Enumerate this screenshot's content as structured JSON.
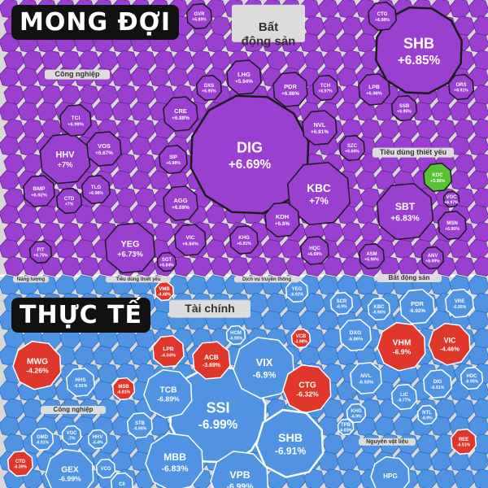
{
  "panels": {
    "top_label": "MONG ĐỢI",
    "bottom_label": "THỰC TẾ"
  },
  "colors": {
    "purple": "#9b3fd1",
    "green": "#58c232",
    "blue": "#4f93e2",
    "red": "#e0372c",
    "gray_bg": "#d8d8d8"
  },
  "sectors": {
    "bat_dong_san_top": [
      "Bất",
      "động sản"
    ],
    "cong_nghiep_top": "Công nghiệp",
    "tieu_dung_thiet_yeu_top": "Tiêu dùng thiết yếu",
    "nang_luong": "Năng lượng",
    "tieu_dung_thiet_yeu_bottom": "Tiêu dùng thiết yếu",
    "dich_vu_truyen_thong": "Dịch vụ truyền thông",
    "bat_dong_san_bottom": "Bất động sản",
    "tai_chinh": "Tài chính",
    "cong_nghiep_bottom": "Công nghiệp",
    "nguyen_vat_lieu": "Nguyên vật liệu"
  },
  "top_cells": [
    {
      "ticker": "SHB",
      "pct": "+6.85%",
      "color": "purple"
    },
    {
      "ticker": "DIG",
      "pct": "+6.69%",
      "color": "purple"
    },
    {
      "ticker": "KBC",
      "pct": "+7%",
      "color": "purple"
    },
    {
      "ticker": "SBT",
      "pct": "+6.83%",
      "color": "purple"
    },
    {
      "ticker": "HHV",
      "pct": "+7%",
      "color": "purple"
    },
    {
      "ticker": "YEG",
      "pct": "+6.73%",
      "color": "purple"
    },
    {
      "ticker": "LHG",
      "pct": "+5.94%",
      "color": "purple"
    },
    {
      "ticker": "PDR",
      "pct": "+6.98%",
      "color": "purple"
    },
    {
      "ticker": "NVL",
      "pct": "+6.91%",
      "color": "purple"
    },
    {
      "ticker": "CRE",
      "pct": "+6.88%",
      "color": "purple"
    },
    {
      "ticker": "AGG",
      "pct": "+6.69%",
      "color": "purple"
    },
    {
      "ticker": "VIC",
      "pct": "+6.84%",
      "color": "purple"
    },
    {
      "ticker": "KHG",
      "pct": "+6.91%",
      "color": "purple"
    },
    {
      "ticker": "KDH",
      "pct": "+6.8%",
      "color": "purple"
    },
    {
      "ticker": "HQC",
      "pct": "+6.69%",
      "color": "purple"
    },
    {
      "ticker": "SIP",
      "pct": "+6.98%",
      "color": "purple"
    },
    {
      "ticker": "DXS",
      "pct": "+6.95%",
      "color": "purple"
    },
    {
      "ticker": "TCH",
      "pct": "+6.97%",
      "color": "purple"
    },
    {
      "ticker": "SZC",
      "pct": "+6.66%",
      "color": "purple"
    },
    {
      "ticker": "TCI",
      "pct": "+6.99%",
      "color": "purple"
    },
    {
      "ticker": "VOS",
      "pct": "+6.67%",
      "color": "purple"
    },
    {
      "ticker": "BMP",
      "pct": "+6.92%",
      "color": "purple"
    },
    {
      "ticker": "TLG",
      "pct": "+6.98%",
      "color": "purple"
    },
    {
      "ticker": "CTD",
      "pct": "+7%",
      "color": "purple"
    },
    {
      "ticker": "LPB",
      "pct": "+6.98%",
      "color": "purple"
    },
    {
      "ticker": "SSB",
      "pct": "+6.95%",
      "color": "purple"
    },
    {
      "ticker": "CTG",
      "pct": "+6.98%",
      "color": "purple"
    },
    {
      "ticker": "ORS",
      "pct": "+6.91%",
      "color": "purple"
    },
    {
      "ticker": "MSN",
      "pct": "+6.95%",
      "color": "purple"
    },
    {
      "ticker": "ASM",
      "pct": "+6.96%",
      "color": "purple"
    },
    {
      "ticker": "ANV",
      "pct": "+6.99%",
      "color": "purple"
    },
    {
      "ticker": "KDC",
      "pct": "+3.35%",
      "color": "green"
    },
    {
      "ticker": "GVR",
      "pct": "+6.89%",
      "color": "purple"
    },
    {
      "ticker": "VGC",
      "pct": "+6.97%",
      "color": "purple"
    },
    {
      "ticker": "FIT",
      "pct": "+6.75%",
      "color": "purple"
    },
    {
      "ticker": "SGT",
      "pct": "+6.84%",
      "color": "purple"
    }
  ],
  "bottom_cells": [
    {
      "ticker": "SSI",
      "pct": "-6.99%",
      "color": "blue"
    },
    {
      "ticker": "VIX",
      "pct": "-6.9%",
      "color": "blue"
    },
    {
      "ticker": "CTG",
      "pct": "-6.32%",
      "color": "red"
    },
    {
      "ticker": "SHB",
      "pct": "-6.91%",
      "color": "blue"
    },
    {
      "ticker": "MBB",
      "pct": "-6.83%",
      "color": "blue"
    },
    {
      "ticker": "TCB",
      "pct": "-6.89%",
      "color": "blue"
    },
    {
      "ticker": "ACB",
      "pct": "-3.69%",
      "color": "red"
    },
    {
      "ticker": "LPB",
      "pct": "-4.04%",
      "color": "red"
    },
    {
      "ticker": "VPB",
      "pct": "-6.99%",
      "color": "blue"
    },
    {
      "ticker": "MWG",
      "pct": "-4.26%",
      "color": "red"
    },
    {
      "ticker": "HHS",
      "pct": "-6.91%",
      "color": "blue"
    },
    {
      "ticker": "GEX",
      "pct": "-6.99%",
      "color": "blue"
    },
    {
      "ticker": "VHM",
      "pct": "-6.9%",
      "color": "red"
    },
    {
      "ticker": "VIC",
      "pct": "-4.46%",
      "color": "red"
    },
    {
      "ticker": "PDR",
      "pct": "-6.92%",
      "color": "blue"
    },
    {
      "ticker": "VRE",
      "pct": "-6.95%",
      "color": "blue"
    },
    {
      "ticker": "DXG",
      "pct": "-6.86%",
      "color": "blue"
    },
    {
      "ticker": "NVL",
      "pct": "-6.93%",
      "color": "blue"
    },
    {
      "ticker": "DIG",
      "pct": "-6.91%",
      "color": "blue"
    },
    {
      "ticker": "KBC",
      "pct": "-6.94%",
      "color": "blue"
    },
    {
      "ticker": "SCR",
      "pct": "-6.9%",
      "color": "blue"
    },
    {
      "ticker": "HDC",
      "pct": "-6.95%",
      "color": "blue"
    },
    {
      "ticker": "LIC",
      "pct": "-6.77%",
      "color": "blue"
    },
    {
      "ticker": "HPG",
      "pct": "",
      "color": "blue"
    },
    {
      "ticker": "YEG",
      "pct": "-6.92%",
      "color": "blue"
    },
    {
      "ticker": "VCB",
      "pct": "-4.98%",
      "color": "red"
    },
    {
      "ticker": "HCM",
      "pct": "-6.95%",
      "color": "blue"
    },
    {
      "ticker": "STB",
      "pct": "-6.95%",
      "color": "blue"
    },
    {
      "ticker": "MSB",
      "pct": "-6.81%",
      "color": "red"
    },
    {
      "ticker": "GMD",
      "pct": "-6.91%",
      "color": "blue"
    },
    {
      "ticker": "VGC",
      "pct": "-7%",
      "color": "blue"
    },
    {
      "ticker": "HHV",
      "pct": "-6.4%",
      "color": "blue"
    },
    {
      "ticker": "CTD",
      "pct": "-6.39%",
      "color": "red"
    },
    {
      "ticker": "VCG",
      "pct": "",
      "color": "blue"
    },
    {
      "ticker": "REE",
      "pct": "-6.51%",
      "color": "red"
    },
    {
      "ticker": "NTL",
      "pct": "-6.9%",
      "color": "blue"
    },
    {
      "ticker": "KHG",
      "pct": "-6.9%",
      "color": "blue"
    },
    {
      "ticker": "TPB",
      "pct": "-6.83%",
      "color": "blue"
    },
    {
      "ticker": "VMB",
      "pct": "-4.48%",
      "color": "red"
    },
    {
      "ticker": "CII",
      "pct": "",
      "color": "blue"
    }
  ]
}
